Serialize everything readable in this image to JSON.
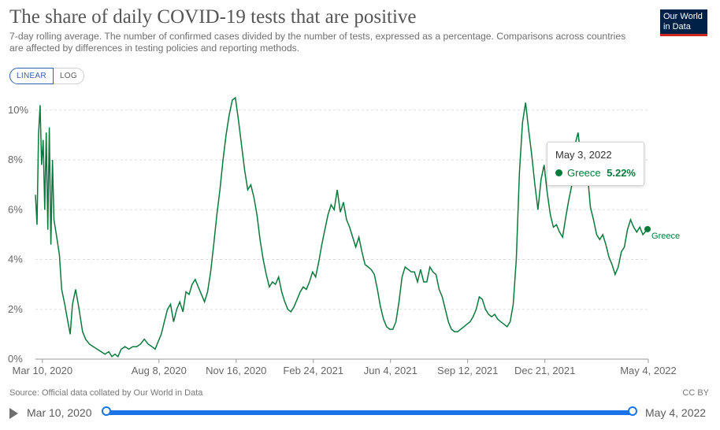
{
  "header": {
    "title": "The share of daily COVID-19 tests that are positive",
    "subtitle": "7-day rolling average. The number of confirmed cases divided by the number of tests, expressed as a percentage. Comparisons across countries are affected by differences in testing policies and reporting methods.",
    "logo_line1": "Our World",
    "logo_line2": "in Data"
  },
  "scale_toggle": {
    "linear": "LINEAR",
    "log": "LOG",
    "selected": "LINEAR"
  },
  "tooltip": {
    "date": "May 3, 2022",
    "series": "Greece",
    "value": "5.22%"
  },
  "footer": {
    "source": "Source: Official data collated by Our World in Data",
    "license": "CC BY"
  },
  "timeline": {
    "start": "Mar 10, 2020",
    "end": "May 4, 2022"
  },
  "colors": {
    "series": "#0a7a3c",
    "grid": "#dddddd",
    "slider": "#1a73e8"
  },
  "chart_data": {
    "type": "line",
    "title": "The share of daily COVID-19 tests that are positive",
    "ylabel": "",
    "xlabel": "",
    "ylim": [
      0,
      10.5
    ],
    "xlim": [
      "2020-03-01",
      "2022-05-04"
    ],
    "y_ticks": [
      "0%",
      "2%",
      "4%",
      "6%",
      "8%",
      "10%"
    ],
    "y_tick_values": [
      0,
      2,
      4,
      6,
      8,
      10
    ],
    "x_ticks": [
      "Mar 10, 2020",
      "Aug 8, 2020",
      "Nov 16, 2020",
      "Feb 24, 2021",
      "Jun 4, 2021",
      "Sep 12, 2021",
      "Dec 21, 2021",
      "May 4, 2022"
    ],
    "x_tick_dates": [
      "2020-03-10",
      "2020-08-08",
      "2020-11-16",
      "2021-02-24",
      "2021-06-04",
      "2021-09-12",
      "2021-12-21",
      "2022-05-04"
    ],
    "grid": "horizontal",
    "series": [
      {
        "name": "Greece",
        "end_label": "Greece",
        "points": [
          [
            "2020-03-01",
            6.6
          ],
          [
            "2020-03-03",
            5.4
          ],
          [
            "2020-03-05",
            9.0
          ],
          [
            "2020-03-07",
            10.2
          ],
          [
            "2020-03-09",
            7.8
          ],
          [
            "2020-03-11",
            8.8
          ],
          [
            "2020-03-13",
            6.0
          ],
          [
            "2020-03-15",
            9.1
          ],
          [
            "2020-03-17",
            5.2
          ],
          [
            "2020-03-19",
            9.3
          ],
          [
            "2020-03-21",
            4.6
          ],
          [
            "2020-03-23",
            8.0
          ],
          [
            "2020-03-25",
            5.6
          ],
          [
            "2020-03-28",
            5.0
          ],
          [
            "2020-04-01",
            4.2
          ],
          [
            "2020-04-04",
            2.8
          ],
          [
            "2020-04-08",
            2.2
          ],
          [
            "2020-04-12",
            1.5
          ],
          [
            "2020-04-15",
            1.0
          ],
          [
            "2020-04-18",
            2.2
          ],
          [
            "2020-04-22",
            2.8
          ],
          [
            "2020-04-26",
            2.1
          ],
          [
            "2020-05-01",
            1.1
          ],
          [
            "2020-05-05",
            0.8
          ],
          [
            "2020-05-10",
            0.6
          ],
          [
            "2020-05-15",
            0.5
          ],
          [
            "2020-05-20",
            0.4
          ],
          [
            "2020-05-25",
            0.3
          ],
          [
            "2020-05-30",
            0.2
          ],
          [
            "2020-06-04",
            0.3
          ],
          [
            "2020-06-08",
            0.1
          ],
          [
            "2020-06-12",
            0.2
          ],
          [
            "2020-06-16",
            0.1
          ],
          [
            "2020-06-20",
            0.4
          ],
          [
            "2020-06-25",
            0.5
          ],
          [
            "2020-06-30",
            0.4
          ],
          [
            "2020-07-05",
            0.5
          ],
          [
            "2020-07-10",
            0.5
          ],
          [
            "2020-07-15",
            0.6
          ],
          [
            "2020-07-20",
            0.8
          ],
          [
            "2020-07-25",
            0.6
          ],
          [
            "2020-07-30",
            0.5
          ],
          [
            "2020-08-03",
            0.4
          ],
          [
            "2020-08-07",
            0.7
          ],
          [
            "2020-08-11",
            1.0
          ],
          [
            "2020-08-15",
            1.5
          ],
          [
            "2020-08-19",
            2.0
          ],
          [
            "2020-08-23",
            2.2
          ],
          [
            "2020-08-27",
            1.5
          ],
          [
            "2020-08-31",
            2.0
          ],
          [
            "2020-09-04",
            2.3
          ],
          [
            "2020-09-08",
            1.9
          ],
          [
            "2020-09-12",
            2.7
          ],
          [
            "2020-09-16",
            2.6
          ],
          [
            "2020-09-20",
            3.0
          ],
          [
            "2020-09-24",
            3.2
          ],
          [
            "2020-09-28",
            2.9
          ],
          [
            "2020-10-02",
            2.6
          ],
          [
            "2020-10-06",
            2.3
          ],
          [
            "2020-10-10",
            2.7
          ],
          [
            "2020-10-14",
            3.5
          ],
          [
            "2020-10-18",
            4.6
          ],
          [
            "2020-10-22",
            5.8
          ],
          [
            "2020-10-26",
            6.8
          ],
          [
            "2020-10-30",
            8.0
          ],
          [
            "2020-11-03",
            9.0
          ],
          [
            "2020-11-07",
            9.8
          ],
          [
            "2020-11-11",
            10.4
          ],
          [
            "2020-11-15",
            10.5
          ],
          [
            "2020-11-19",
            9.6
          ],
          [
            "2020-11-23",
            8.6
          ],
          [
            "2020-11-27",
            7.6
          ],
          [
            "2020-12-01",
            6.8
          ],
          [
            "2020-12-05",
            7.0
          ],
          [
            "2020-12-09",
            6.5
          ],
          [
            "2020-12-13",
            5.8
          ],
          [
            "2020-12-17",
            4.8
          ],
          [
            "2020-12-21",
            4.0
          ],
          [
            "2020-12-25",
            3.4
          ],
          [
            "2020-12-29",
            2.9
          ],
          [
            "2021-01-02",
            3.1
          ],
          [
            "2021-01-06",
            3.0
          ],
          [
            "2021-01-10",
            3.3
          ],
          [
            "2021-01-14",
            2.7
          ],
          [
            "2021-01-18",
            2.3
          ],
          [
            "2021-01-22",
            2.0
          ],
          [
            "2021-01-26",
            1.9
          ],
          [
            "2021-01-30",
            2.1
          ],
          [
            "2021-02-03",
            2.4
          ],
          [
            "2021-02-07",
            2.7
          ],
          [
            "2021-02-11",
            2.9
          ],
          [
            "2021-02-15",
            2.8
          ],
          [
            "2021-02-19",
            3.1
          ],
          [
            "2021-02-23",
            3.5
          ],
          [
            "2021-02-27",
            3.3
          ],
          [
            "2021-03-03",
            3.9
          ],
          [
            "2021-03-07",
            4.6
          ],
          [
            "2021-03-11",
            5.2
          ],
          [
            "2021-03-15",
            5.8
          ],
          [
            "2021-03-19",
            6.2
          ],
          [
            "2021-03-23",
            6.0
          ],
          [
            "2021-03-27",
            6.8
          ],
          [
            "2021-03-31",
            5.9
          ],
          [
            "2021-04-04",
            6.3
          ],
          [
            "2021-04-08",
            5.6
          ],
          [
            "2021-04-12",
            5.3
          ],
          [
            "2021-04-16",
            4.9
          ],
          [
            "2021-04-20",
            4.5
          ],
          [
            "2021-04-24",
            4.9
          ],
          [
            "2021-04-28",
            4.3
          ],
          [
            "2021-05-02",
            3.8
          ],
          [
            "2021-05-06",
            3.7
          ],
          [
            "2021-05-10",
            3.6
          ],
          [
            "2021-05-14",
            3.4
          ],
          [
            "2021-05-18",
            2.8
          ],
          [
            "2021-05-22",
            2.1
          ],
          [
            "2021-05-26",
            1.6
          ],
          [
            "2021-05-30",
            1.3
          ],
          [
            "2021-06-03",
            1.2
          ],
          [
            "2021-06-07",
            1.2
          ],
          [
            "2021-06-11",
            1.5
          ],
          [
            "2021-06-15",
            2.3
          ],
          [
            "2021-06-19",
            3.3
          ],
          [
            "2021-06-23",
            3.7
          ],
          [
            "2021-06-27",
            3.6
          ],
          [
            "2021-07-01",
            3.5
          ],
          [
            "2021-07-05",
            3.5
          ],
          [
            "2021-07-09",
            3.1
          ],
          [
            "2021-07-13",
            3.6
          ],
          [
            "2021-07-17",
            3.1
          ],
          [
            "2021-07-21",
            3.1
          ],
          [
            "2021-07-25",
            3.7
          ],
          [
            "2021-07-29",
            3.5
          ],
          [
            "2021-08-02",
            3.4
          ],
          [
            "2021-08-06",
            2.8
          ],
          [
            "2021-08-10",
            2.5
          ],
          [
            "2021-08-14",
            2.0
          ],
          [
            "2021-08-18",
            1.5
          ],
          [
            "2021-08-22",
            1.2
          ],
          [
            "2021-08-26",
            1.1
          ],
          [
            "2021-08-30",
            1.1
          ],
          [
            "2021-09-03",
            1.2
          ],
          [
            "2021-09-07",
            1.3
          ],
          [
            "2021-09-11",
            1.4
          ],
          [
            "2021-09-15",
            1.5
          ],
          [
            "2021-09-19",
            1.7
          ],
          [
            "2021-09-23",
            2.0
          ],
          [
            "2021-09-27",
            2.5
          ],
          [
            "2021-10-01",
            2.4
          ],
          [
            "2021-10-05",
            2.0
          ],
          [
            "2021-10-09",
            1.8
          ],
          [
            "2021-10-13",
            1.7
          ],
          [
            "2021-10-17",
            1.8
          ],
          [
            "2021-10-21",
            1.6
          ],
          [
            "2021-10-25",
            1.5
          ],
          [
            "2021-10-29",
            1.4
          ],
          [
            "2021-11-02",
            1.3
          ],
          [
            "2021-11-06",
            1.5
          ],
          [
            "2021-11-10",
            2.2
          ],
          [
            "2021-11-14",
            4.0
          ],
          [
            "2021-11-18",
            7.5
          ],
          [
            "2021-11-22",
            9.5
          ],
          [
            "2021-11-26",
            10.3
          ],
          [
            "2021-11-30",
            9.2
          ],
          [
            "2021-12-04",
            8.2
          ],
          [
            "2021-12-08",
            7.0
          ],
          [
            "2021-12-12",
            6.0
          ],
          [
            "2021-12-16",
            7.2
          ],
          [
            "2021-12-20",
            7.8
          ],
          [
            "2021-12-24",
            6.7
          ],
          [
            "2021-12-28",
            5.8
          ],
          [
            "2022-01-01",
            5.3
          ],
          [
            "2022-01-05",
            5.4
          ],
          [
            "2022-01-09",
            5.1
          ],
          [
            "2022-01-13",
            4.9
          ],
          [
            "2022-01-17",
            5.7
          ],
          [
            "2022-01-21",
            6.4
          ],
          [
            "2022-01-25",
            7.0
          ],
          [
            "2022-01-29",
            8.6
          ],
          [
            "2022-02-02",
            9.1
          ],
          [
            "2022-02-06",
            8.0
          ],
          [
            "2022-02-10",
            7.8
          ],
          [
            "2022-02-14",
            7.5
          ],
          [
            "2022-02-18",
            6.1
          ],
          [
            "2022-02-22",
            5.6
          ],
          [
            "2022-02-26",
            5.0
          ],
          [
            "2022-03-02",
            4.8
          ],
          [
            "2022-03-06",
            5.0
          ],
          [
            "2022-03-10",
            4.6
          ],
          [
            "2022-03-14",
            4.1
          ],
          [
            "2022-03-18",
            3.8
          ],
          [
            "2022-03-22",
            3.4
          ],
          [
            "2022-03-26",
            3.7
          ],
          [
            "2022-03-30",
            4.3
          ],
          [
            "2022-04-03",
            4.5
          ],
          [
            "2022-04-07",
            5.2
          ],
          [
            "2022-04-11",
            5.6
          ],
          [
            "2022-04-15",
            5.3
          ],
          [
            "2022-04-19",
            5.1
          ],
          [
            "2022-04-23",
            5.3
          ],
          [
            "2022-04-27",
            5.0
          ],
          [
            "2022-05-03",
            5.22
          ],
          [
            "2022-05-04",
            5.22
          ]
        ]
      }
    ],
    "highlight_point": [
      "2022-05-03",
      5.22
    ]
  }
}
